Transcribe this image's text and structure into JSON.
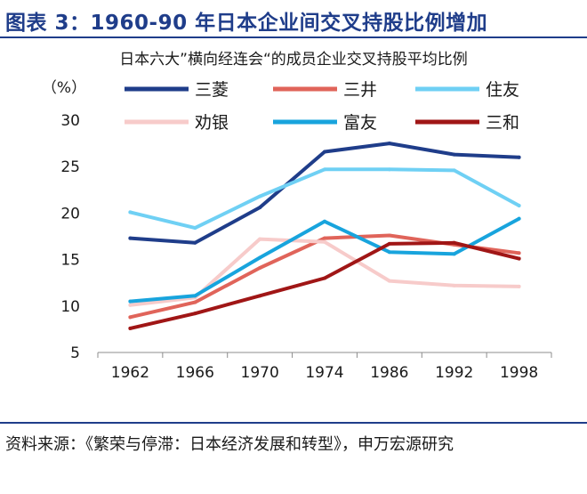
{
  "header": {
    "title": "图表 3：1960-90 年日本企业间交叉持股比例增加"
  },
  "footer": {
    "source": "资料来源：《繁荣与停滞：日本经济发展和转型》，申万宏源研究"
  },
  "chart_data": {
    "type": "line",
    "title": "日本六大”横向经连会“的成员企业交叉持股平均比例",
    "ylabel": "（%）",
    "xlabel": "",
    "categories": [
      "1962",
      "1966",
      "1970",
      "1974",
      "1986",
      "1992",
      "1998"
    ],
    "ylim": [
      5,
      30
    ],
    "yticks": [
      5,
      10,
      15,
      20,
      25,
      30
    ],
    "legend_position": "top",
    "series": [
      {
        "name": "三菱",
        "color": "#1f3d8a",
        "values": [
          17.3,
          16.8,
          20.6,
          26.6,
          27.5,
          26.3,
          26.0
        ]
      },
      {
        "name": "三井",
        "color": "#e0645a",
        "values": [
          8.8,
          10.4,
          14.1,
          17.3,
          17.6,
          16.6,
          15.7
        ]
      },
      {
        "name": "住友",
        "color": "#6fd0f4",
        "values": [
          20.1,
          18.4,
          21.8,
          24.7,
          24.7,
          24.6,
          20.8
        ]
      },
      {
        "name": "劝银",
        "color": "#f7cbca",
        "values": [
          10.1,
          10.9,
          17.2,
          16.9,
          12.7,
          12.2,
          12.1
        ]
      },
      {
        "name": "富友",
        "color": "#18a4dd",
        "values": [
          10.5,
          11.1,
          15.2,
          19.1,
          15.8,
          15.6,
          19.4
        ]
      },
      {
        "name": "三和",
        "color": "#a01616",
        "values": [
          7.6,
          9.2,
          11.1,
          13.0,
          16.7,
          16.8,
          15.1
        ]
      }
    ]
  }
}
